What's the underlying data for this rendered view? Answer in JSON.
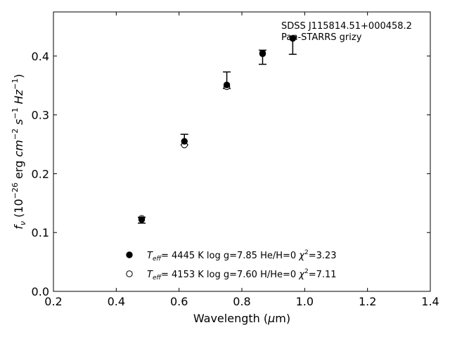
{
  "chart_data": {
    "type": "scatter",
    "annotation_lines": [
      "SDSS J115814.51+000458.2",
      "Pan-STARRS grizy"
    ],
    "xlabel": "Wavelength (μm)",
    "ylabel": "f_ν (10^-26 erg cm^-2 s^-1 Hz^-1)",
    "xlim": [
      0.2,
      1.4
    ],
    "ylim": [
      0.0,
      0.475
    ],
    "xticks": [
      0.2,
      0.4,
      0.6,
      0.8,
      1.0,
      1.2,
      1.4
    ],
    "yticks": [
      0.0,
      0.1,
      0.2,
      0.3,
      0.4
    ],
    "xtick_labels": [
      "0.2",
      "0.4",
      "0.6",
      "0.8",
      "1.0",
      "1.2",
      "1.4"
    ],
    "ytick_labels": [
      "0.0",
      "0.1",
      "0.2",
      "0.3",
      "0.4"
    ],
    "grid": false,
    "legend_position": "lower-center",
    "observed": {
      "x": [
        0.481,
        0.617,
        0.752,
        0.866,
        0.962
      ],
      "y": [
        0.121,
        0.254,
        0.35,
        0.402,
        0.43
      ],
      "yerr_low": [
        0.005,
        0.005,
        0.005,
        0.016,
        0.027
      ],
      "yerr_high": [
        0.005,
        0.013,
        0.023,
        0.008,
        0.003
      ]
    },
    "series": [
      {
        "marker": "filled-circle",
        "x": [
          0.481,
          0.617,
          0.752,
          0.866,
          0.962
        ],
        "y": [
          0.122,
          0.255,
          0.351,
          0.405,
          0.43
        ],
        "legend": {
          "teff_value": "4445 K",
          "logg": "log g=7.85",
          "comp": "He/H=0",
          "chi": "3.23"
        }
      },
      {
        "marker": "open-circle",
        "x": [
          0.481,
          0.617,
          0.752,
          0.866,
          0.962
        ],
        "y": [
          0.124,
          0.249,
          0.348,
          0.404,
          0.43
        ],
        "legend": {
          "teff_value": "4153 K",
          "logg": "log g=7.60",
          "comp": "H/He=0",
          "chi": "7.11"
        }
      }
    ]
  }
}
